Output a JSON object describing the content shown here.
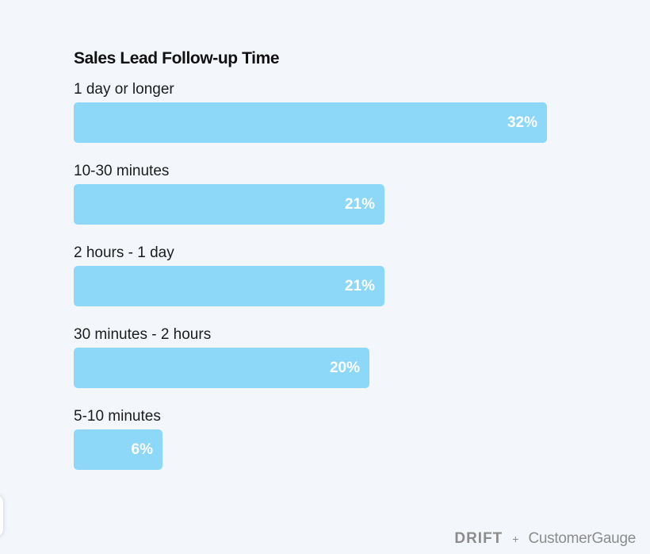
{
  "chart_data": {
    "type": "bar",
    "orientation": "horizontal",
    "title": "Sales Lead Follow-up Time",
    "categories": [
      "1 day or longer",
      "10-30 minutes",
      "2 hours - 1 day",
      "30 minutes - 2 hours",
      "5-10 minutes"
    ],
    "values": [
      32,
      21,
      21,
      20,
      6
    ],
    "value_labels": [
      "32%",
      "21%",
      "21%",
      "20%",
      "6%"
    ],
    "bar_color": "#8dd8f8",
    "label_color": "#ffffff",
    "xlim": [
      0,
      37.5
    ],
    "grid": false,
    "legend": "none"
  },
  "footer": {
    "logo_drift": "DRIFT",
    "separator": "+",
    "logo_customergauge": "CustomerGauge"
  },
  "colors": {
    "background": "#f3f7fb",
    "text": "#1c1c1c",
    "footer_text": "#8c8c8c"
  }
}
